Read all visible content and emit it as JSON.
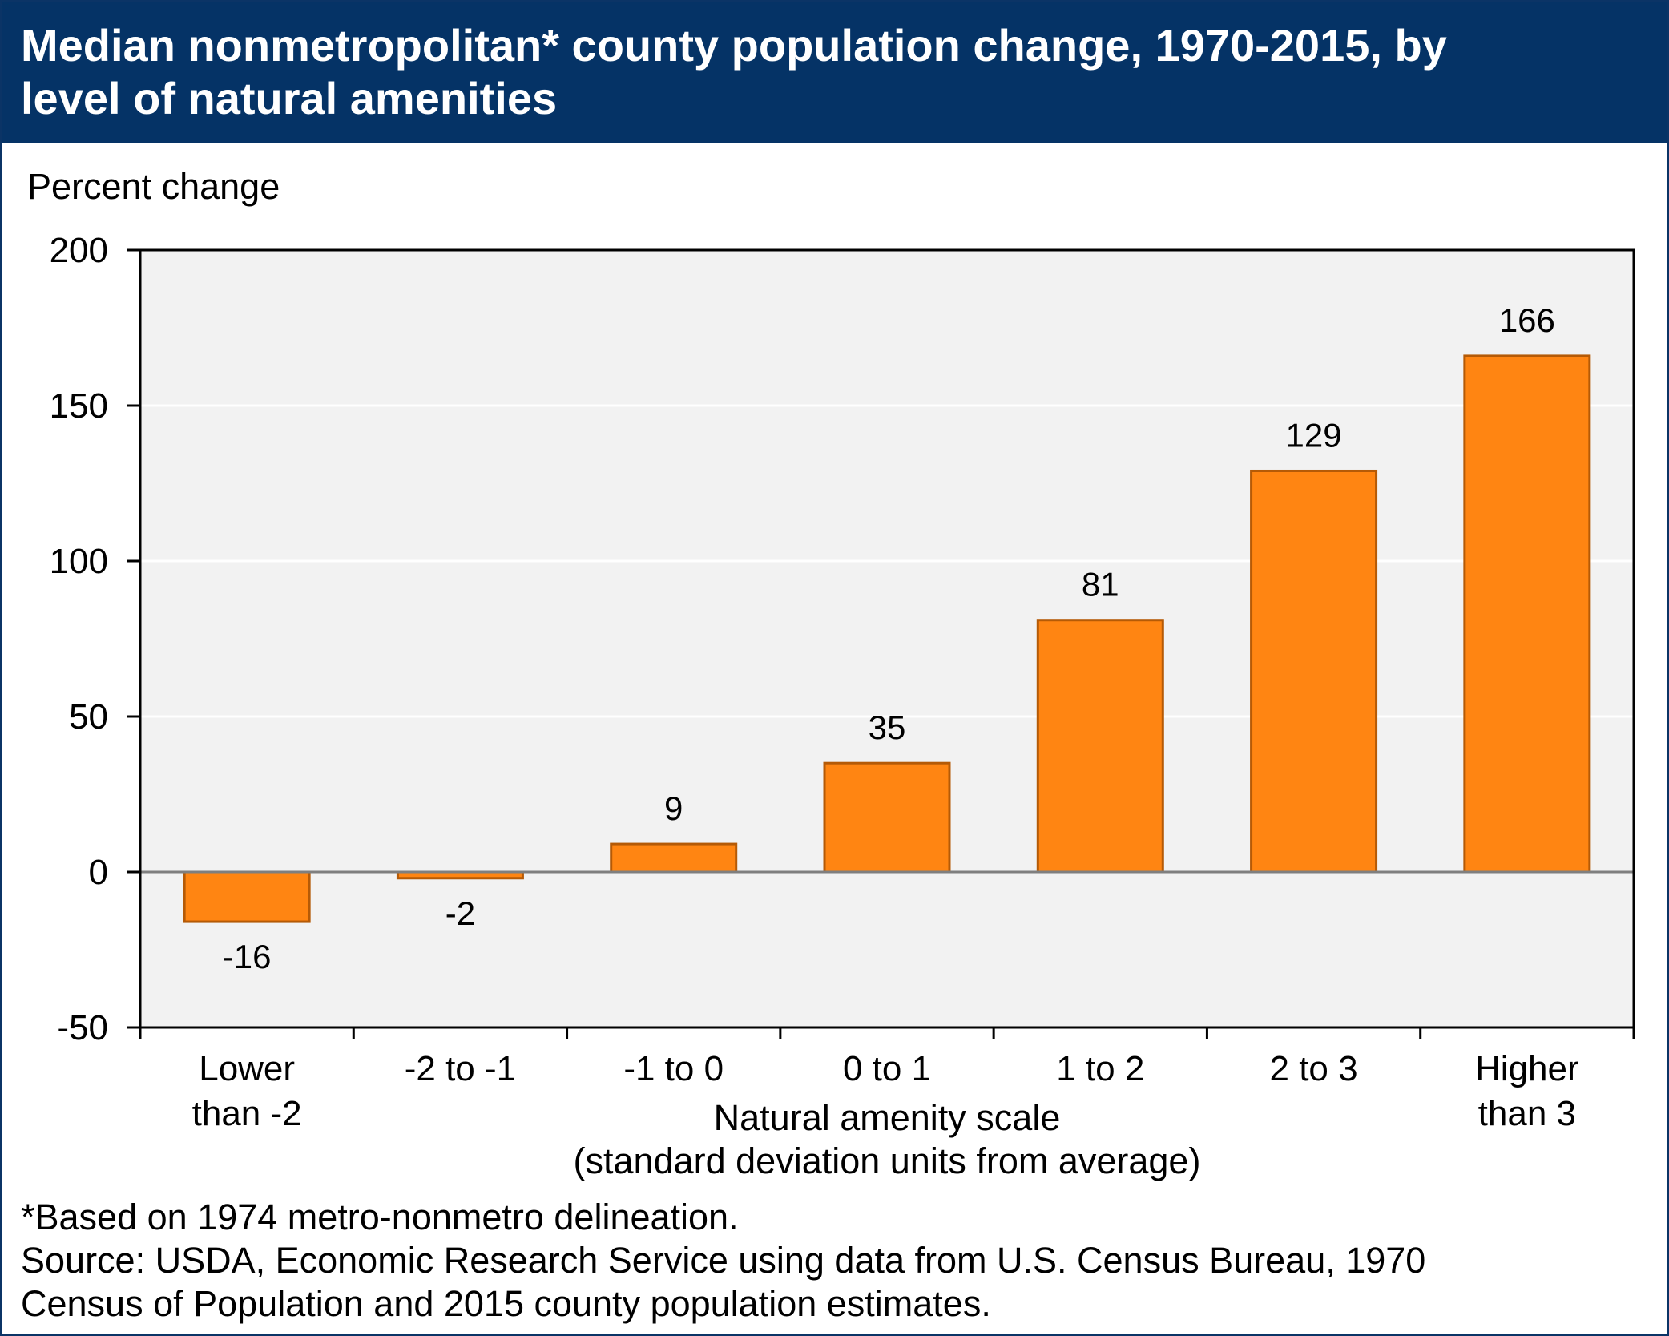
{
  "title": "Median nonmetropolitan* county population change, 1970-2015, by level of natural amenities",
  "footnote": {
    "note": "*Based on 1974 metro-nonmetro delineation.",
    "source_line1": "Source: USDA, Economic Research Service using data from U.S. Census Bureau, 1970",
    "source_line2": "Census of Population and 2015 county population estimates."
  },
  "colors": {
    "title_bar": "#053366",
    "bar_fill": "#ff8512",
    "bar_stroke": "#b55a06",
    "plot_bg": "#f2f2f2",
    "grid": "#ffffff",
    "zero_line": "#7f7f7f"
  },
  "chart_data": {
    "type": "bar",
    "ylabel": "Percent change",
    "xlabel_line1": "Natural amenity scale",
    "xlabel_line2": "(standard deviation units from average)",
    "ylim": [
      -50,
      200
    ],
    "yticks": [
      -50,
      0,
      50,
      100,
      150,
      200
    ],
    "grid": true,
    "categories": [
      [
        "Lower",
        "than -2"
      ],
      [
        "-2 to -1"
      ],
      [
        "-1 to 0"
      ],
      [
        "0 to 1"
      ],
      [
        "1 to 2"
      ],
      [
        "2 to 3"
      ],
      [
        "Higher",
        "than 3"
      ]
    ],
    "values": [
      -16,
      -2,
      9,
      35,
      81,
      129,
      166
    ]
  }
}
